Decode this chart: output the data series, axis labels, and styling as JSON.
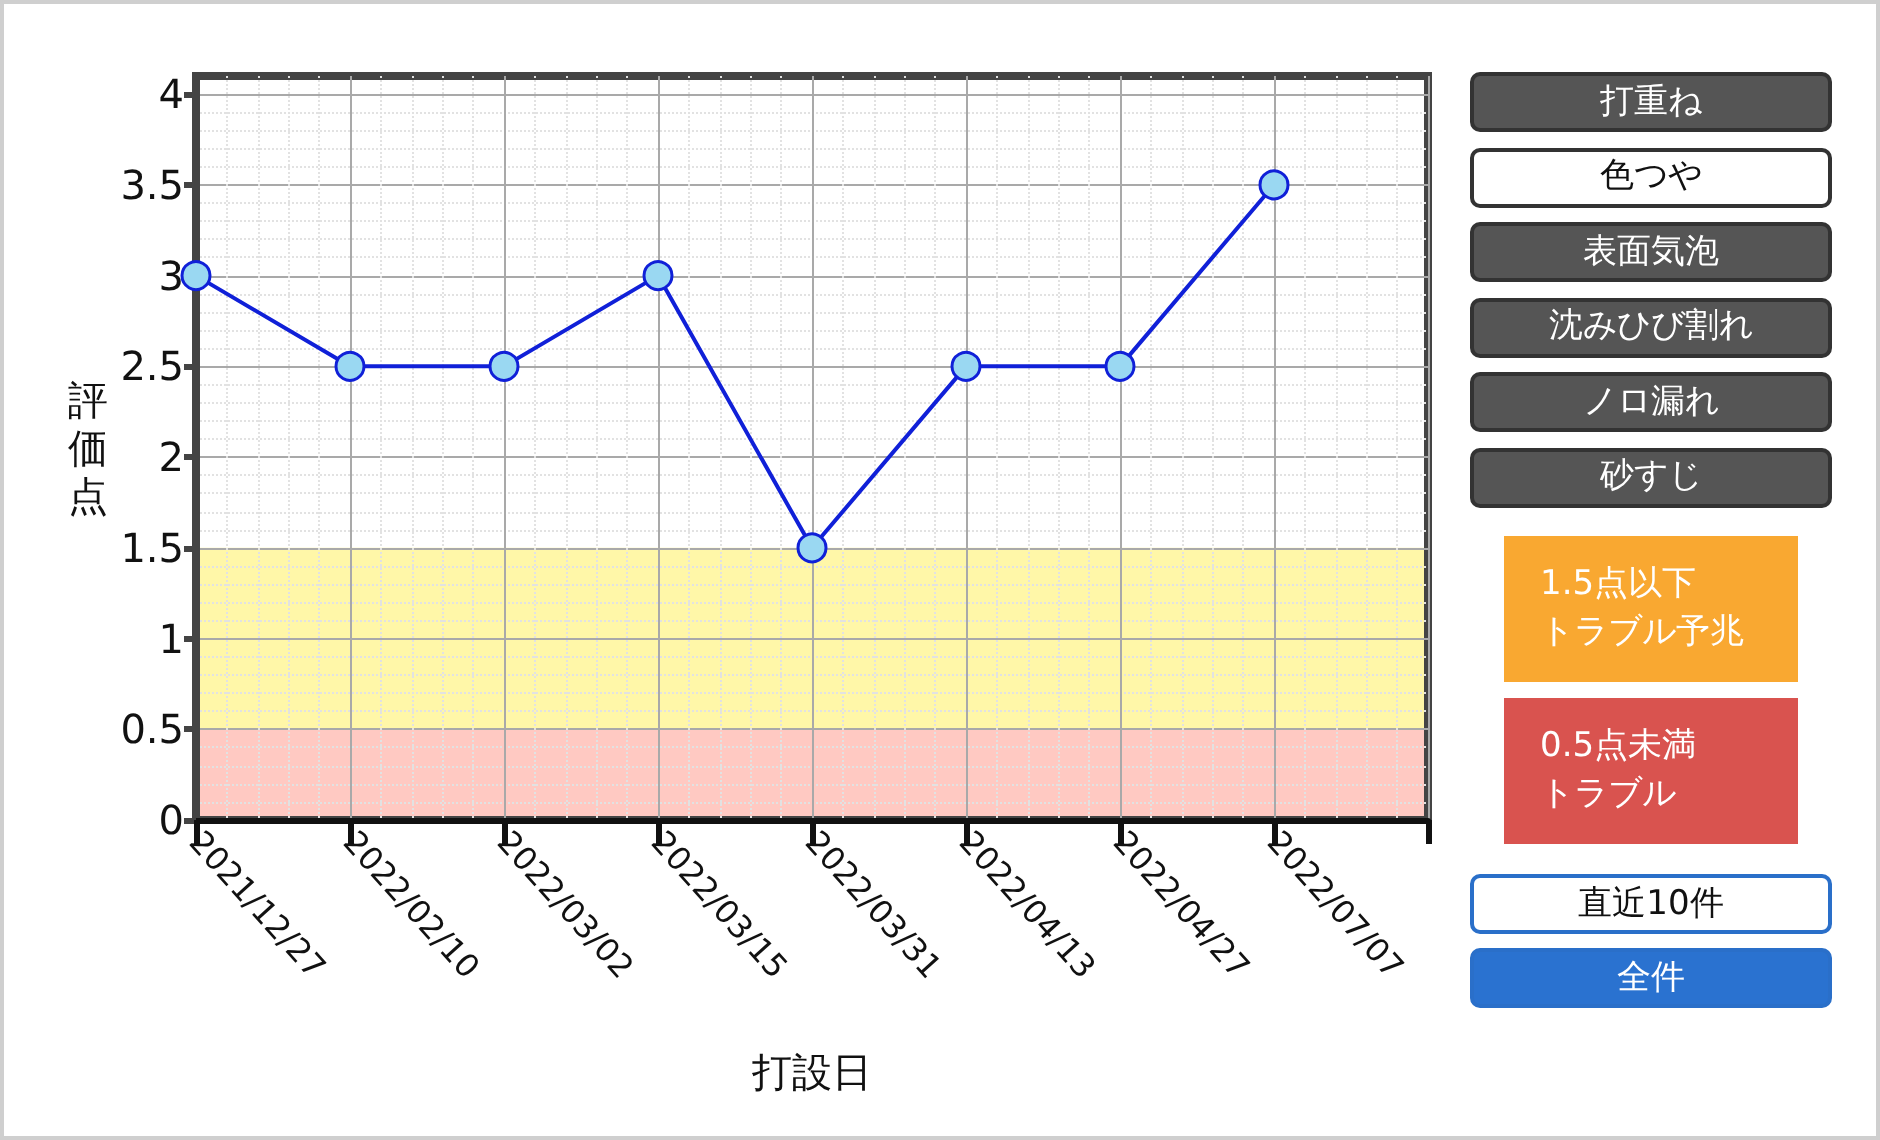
{
  "chart_data": {
    "type": "line",
    "xlabel": "打設日",
    "ylabel": "評価点",
    "categories": [
      "2021/12/27",
      "2022/02/10",
      "2022/03/02",
      "2022/03/15",
      "2022/03/31",
      "2022/04/13",
      "2022/04/27",
      "2022/07/07"
    ],
    "values": [
      3,
      2.5,
      2.5,
      3,
      1.5,
      2.5,
      2.5,
      3.5
    ],
    "color": "#1020d8",
    "ylim": [
      0,
      4.1
    ],
    "yticks": [
      0,
      0.5,
      1,
      1.5,
      2,
      2.5,
      3,
      3.5,
      4
    ],
    "grid": true,
    "marker": "circle",
    "line_style": "solid",
    "bands": [
      {
        "axis": "y",
        "from": 0.5,
        "to": 1.5,
        "color": "#fff7a8"
      },
      {
        "axis": "y",
        "from": 0,
        "to": 0.5,
        "color": "#ffc9c2"
      }
    ],
    "annotations": [
      "打重ね",
      "色つや",
      "表面気泡",
      "沈みひび割れ",
      "ノロ漏れ",
      "砂すじ",
      "1.5点以下トラブル予兆",
      "0.5点未満トラブル",
      "直近10件",
      "全件"
    ]
  }
}
